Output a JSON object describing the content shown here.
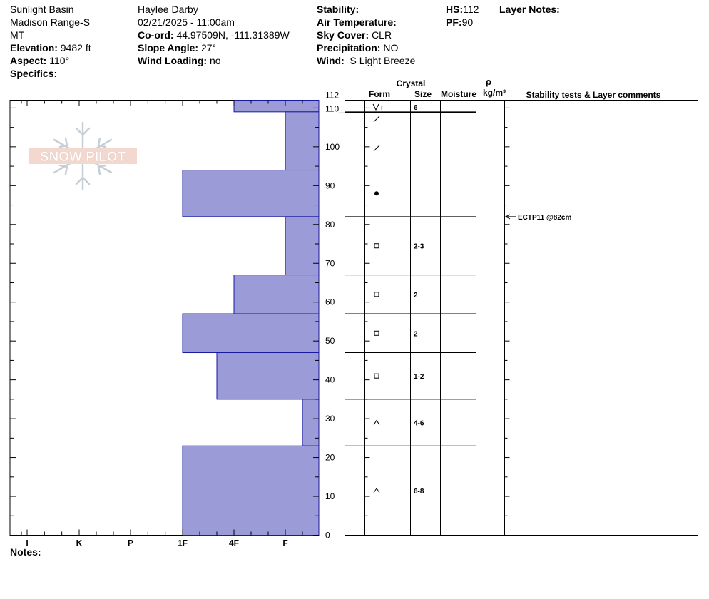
{
  "header": {
    "location": "Sunlight Basin",
    "range": "Madison Range-S",
    "state": "MT",
    "elevation_label": "Elevation:",
    "elevation": "9482 ft",
    "aspect_label": "Aspect:",
    "aspect": "110°",
    "specifics_label": "Specifics:",
    "observer": "Haylee Darby",
    "datetime": "02/21/2025 - 11:00am",
    "coord_label": "Co-ord:",
    "coord": "44.97509N, -111.31389W",
    "slope_label": "Slope Angle:",
    "slope": "27°",
    "wind_loading_label": "Wind Loading:",
    "wind_loading": "no",
    "stability_label": "Stability:",
    "air_temp_label": "Air Temperature:",
    "sky_label": "Sky Cover:",
    "sky": "CLR",
    "precip_label": "Precipitation:",
    "precip": "NO",
    "wind_label": "Wind:",
    "wind": "S Light Breeze",
    "hs_label": "HS:",
    "hs": "112",
    "pf_label": "PF:",
    "pf": "90",
    "layer_notes_label": "Layer Notes:"
  },
  "logo_text": "SNOW PILOT",
  "notes_label": "Notes:",
  "table_headers": {
    "crystal": "Crystal",
    "form": "Form",
    "size": "Size",
    "moisture": "Moisture",
    "rho": "ρ",
    "density_unit": "kg/m³",
    "stability": "Stability tests & Layer comments"
  },
  "chart_data": {
    "type": "bar",
    "orientation": "horizontal",
    "y_axis": {
      "label": "",
      "range": [
        0,
        112
      ],
      "ticks": [
        0,
        10,
        20,
        30,
        40,
        50,
        60,
        70,
        80,
        90,
        100,
        110,
        112
      ]
    },
    "x_axis": {
      "categories": [
        "I",
        "K",
        "P",
        "1F",
        "4F",
        "F"
      ],
      "direction": "hardness-decreasing-left-to-right"
    },
    "layers": [
      {
        "top": 112,
        "bottom": 109,
        "hardness": "4F",
        "form": "rime",
        "size": "6"
      },
      {
        "top": 109,
        "bottom": 94,
        "hardness": "F",
        "form": "decomposing",
        "size": ""
      },
      {
        "top": 94,
        "bottom": 82,
        "hardness": "1F",
        "form": "melt-freeze",
        "size": ""
      },
      {
        "top": 82,
        "bottom": 67,
        "hardness": "F",
        "form": "faceted",
        "size": "2-3"
      },
      {
        "top": 67,
        "bottom": 57,
        "hardness": "4F",
        "form": "faceted",
        "size": "2"
      },
      {
        "top": 57,
        "bottom": 47,
        "hardness": "1F",
        "form": "faceted",
        "size": "2"
      },
      {
        "top": 47,
        "bottom": 35,
        "hardness": "4F-",
        "form": "faceted",
        "size": "1-2"
      },
      {
        "top": 35,
        "bottom": 23,
        "hardness": "F+",
        "form": "depth-hoar",
        "size": "4-6"
      },
      {
        "top": 23,
        "bottom": 0,
        "hardness": "1F",
        "form": "depth-hoar",
        "size": "6-8"
      }
    ],
    "stability_tests": [
      {
        "depth": 82,
        "text": "ECTP11 @82cm"
      }
    ],
    "colors": {
      "bar_fill": "#9b9bd7",
      "bar_stroke": "#1a1aa0"
    },
    "legend": "none",
    "grid": false
  }
}
